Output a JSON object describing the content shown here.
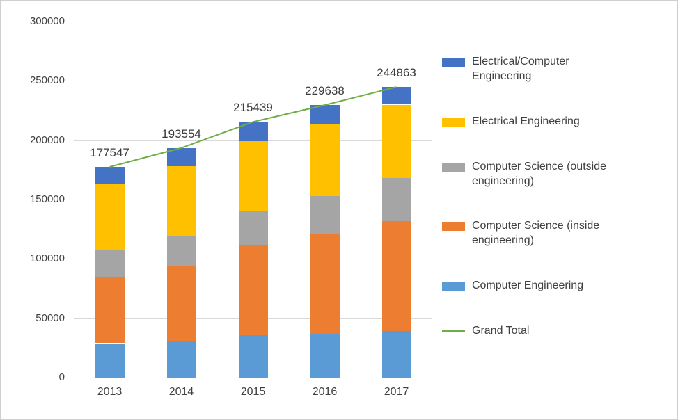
{
  "chart_data": {
    "type": "bar",
    "stacked": true,
    "title": "",
    "xlabel": "",
    "ylabel": "",
    "categories": [
      "2013",
      "2014",
      "2015",
      "2016",
      "2017"
    ],
    "series": [
      {
        "name": "Computer Engineering",
        "color": "#5b9bd5",
        "values": [
          29000,
          31000,
          36000,
          37000,
          39000
        ]
      },
      {
        "name": "Computer Science (inside engineering)",
        "color": "#ed7d31",
        "values": [
          56000,
          63000,
          76000,
          84000,
          93000
        ]
      },
      {
        "name": "Computer Science (outside engineering)",
        "color": "#a5a5a5",
        "values": [
          22000,
          25000,
          28000,
          32000,
          36000
        ]
      },
      {
        "name": "Electrical Engineering",
        "color": "#ffc000",
        "values": [
          56000,
          59000,
          59000,
          61000,
          62000
        ]
      },
      {
        "name": "Electrical/Computer Engineering",
        "color": "#4472c4",
        "values": [
          14547,
          15554,
          16439,
          15638,
          14863
        ]
      }
    ],
    "line_series": {
      "name": "Grand Total",
      "color": "#70ad47",
      "values": [
        177547,
        193554,
        215439,
        229638,
        244863
      ]
    },
    "total_labels": [
      "177547",
      "193554",
      "215439",
      "229638",
      "244863"
    ],
    "ylim": [
      0,
      300000
    ],
    "ytick_step": 50000,
    "yticks": [
      "0",
      "50000",
      "100000",
      "150000",
      "200000",
      "250000",
      "300000"
    ],
    "grid": true,
    "legend_position": "right",
    "legend": [
      {
        "label": "Electrical/Computer Engineering",
        "swatch": "#4472c4",
        "type": "box"
      },
      {
        "label": "Electrical Engineering",
        "swatch": "#ffc000",
        "type": "box"
      },
      {
        "label": "Computer Science (outside engineering)",
        "swatch": "#a5a5a5",
        "type": "box"
      },
      {
        "label": "Computer Science (inside engineering)",
        "swatch": "#ed7d31",
        "type": "box"
      },
      {
        "label": "Computer Engineering",
        "swatch": "#5b9bd5",
        "type": "box"
      },
      {
        "label": "Grand Total",
        "swatch": "#70ad47",
        "type": "line"
      }
    ]
  }
}
